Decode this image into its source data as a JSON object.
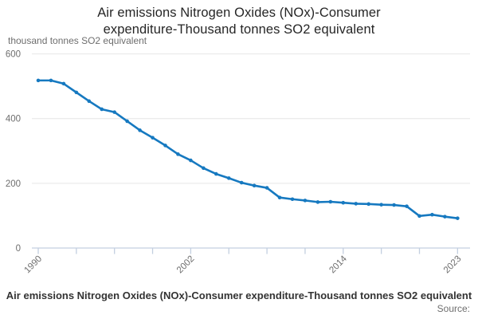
{
  "title": {
    "line1": "Air emissions Nitrogen Oxides (NOx)-Consumer",
    "line2": "expenditure-Thousand tonnes SO2 equivalent"
  },
  "y_axis_unit": "thousand tonnes SO2 equivalent",
  "footer": {
    "caption": "Air emissions Nitrogen Oxides (NOx)-Consumer expenditure-Thousand tonnes SO2 equivalent",
    "source_label": "Source:"
  },
  "colors": {
    "line": "#1679c0",
    "grid": "#e6e6e6",
    "axis": "#c3cfe0",
    "axis_text": "#6e6e6e",
    "title_text": "#262626",
    "caption_text": "#333333"
  },
  "chart_data": {
    "type": "line",
    "title": "Air emissions Nitrogen Oxides (NOx)-Consumer expenditure-Thousand tonnes SO2 equivalent",
    "ylabel": "thousand tonnes SO2 equivalent",
    "xlabel": "",
    "ylim": [
      0,
      600
    ],
    "y_ticks": [
      0,
      200,
      400,
      600
    ],
    "x_tick_labels": [
      "1990",
      "2002",
      "2014",
      "2023"
    ],
    "x_tick_step_years": 3,
    "grid": "horizontal",
    "legend": "none",
    "x": [
      1990,
      1991,
      1992,
      1993,
      1994,
      1995,
      1996,
      1997,
      1998,
      1999,
      2000,
      2001,
      2002,
      2003,
      2004,
      2005,
      2006,
      2007,
      2008,
      2009,
      2010,
      2011,
      2012,
      2013,
      2014,
      2015,
      2016,
      2017,
      2018,
      2019,
      2020,
      2021,
      2022,
      2023
    ],
    "values": [
      518,
      518,
      508,
      481,
      454,
      429,
      420,
      392,
      364,
      341,
      317,
      290,
      271,
      247,
      229,
      216,
      202,
      193,
      186,
      156,
      151,
      147,
      142,
      143,
      140,
      137,
      136,
      134,
      133,
      129,
      99,
      103,
      97,
      92
    ]
  }
}
